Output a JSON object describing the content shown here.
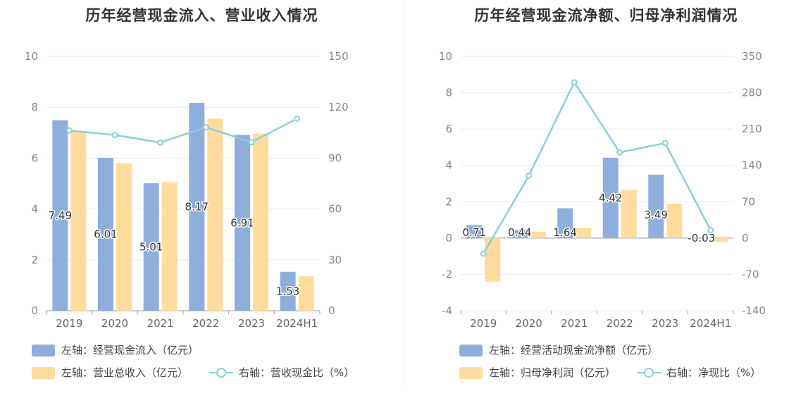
{
  "colors": {
    "blue": "#8eaedb",
    "orange": "#ffdb9e",
    "line": "#86d2d8",
    "grid": "#e5e8f2",
    "axis": "#888888"
  },
  "chart_data": [
    {
      "type": "bar",
      "title": "历年经营现金流入、营业收入情况",
      "categories": [
        "2019",
        "2020",
        "2021",
        "2022",
        "2023",
        "2024H1"
      ],
      "left_axis": {
        "ylim": [
          0,
          10
        ],
        "ticks": [
          "0",
          "2",
          "4",
          "6",
          "8",
          "10"
        ]
      },
      "right_axis": {
        "ylim": [
          0,
          150
        ],
        "ticks": [
          "0",
          "30",
          "60",
          "90",
          "120",
          "150"
        ]
      },
      "series": [
        {
          "name": "左轴：经营现金流入（亿元）",
          "kind": "bar",
          "axis": "left",
          "color": "#8eaedb",
          "values": [
            7.49,
            6.01,
            5.01,
            8.17,
            6.91,
            1.53
          ],
          "labels": [
            "7.49",
            "6.01",
            "5.01",
            "8.17",
            "6.91",
            "1.53"
          ]
        },
        {
          "name": "左轴：营业总收入（亿元）",
          "kind": "bar",
          "axis": "left",
          "color": "#ffdb9e",
          "values": [
            7.05,
            5.8,
            5.05,
            7.55,
            6.95,
            1.35
          ]
        },
        {
          "name": "右轴：营收现金比（%）",
          "kind": "line",
          "axis": "right",
          "color": "#86d2d8",
          "values": [
            106.3,
            103.6,
            99.2,
            108.2,
            99.4,
            113.3
          ]
        }
      ],
      "legend": [
        {
          "text": "左轴：经营现金流入（亿元）",
          "type": "bar",
          "color": "#8eaedb"
        },
        {
          "text": "左轴：营业总收入（亿元）",
          "type": "bar",
          "color": "#ffdb9e"
        },
        {
          "text": "右轴：营收现金比（%）",
          "type": "line",
          "color": "#86d2d8"
        }
      ]
    },
    {
      "type": "bar",
      "title": "历年经营现金流净额、归母净利润情况",
      "categories": [
        "2019",
        "2020",
        "2021",
        "2022",
        "2023",
        "2024H1"
      ],
      "left_axis": {
        "ylim": [
          -4,
          10
        ],
        "ticks": [
          "-4",
          "-2",
          "0",
          "2",
          "4",
          "6",
          "8",
          "10"
        ]
      },
      "right_axis": {
        "ylim": [
          -140,
          350
        ],
        "ticks": [
          "-140",
          "-70",
          "0",
          "70",
          "140",
          "210",
          "280",
          "350"
        ]
      },
      "series": [
        {
          "name": "左轴：经营活动现金流净额（亿元）",
          "kind": "bar",
          "axis": "left",
          "color": "#8eaedb",
          "values": [
            0.71,
            0.44,
            1.64,
            4.42,
            3.49,
            -0.03
          ],
          "labels": [
            "0.71",
            "0.44",
            "1.64",
            "4.42",
            "3.49",
            "-0.03"
          ]
        },
        {
          "name": "左轴：归母净利润（亿元）",
          "kind": "bar",
          "axis": "left",
          "color": "#ffdb9e",
          "values": [
            -2.4,
            0.35,
            0.55,
            2.65,
            1.9,
            -0.22
          ]
        },
        {
          "name": "右轴：净现比（%）",
          "kind": "line",
          "axis": "right",
          "color": "#86d2d8",
          "values": [
            -30,
            120,
            300,
            165,
            183,
            15
          ]
        }
      ],
      "legend": [
        {
          "text": "左轴：经营活动现金流净额（亿元）",
          "type": "bar",
          "color": "#8eaedb"
        },
        {
          "text": "左轴：归母净利润（亿元）",
          "type": "bar",
          "color": "#ffdb9e"
        },
        {
          "text": "右轴：净现比（%）",
          "type": "line",
          "color": "#86d2d8"
        }
      ]
    }
  ]
}
